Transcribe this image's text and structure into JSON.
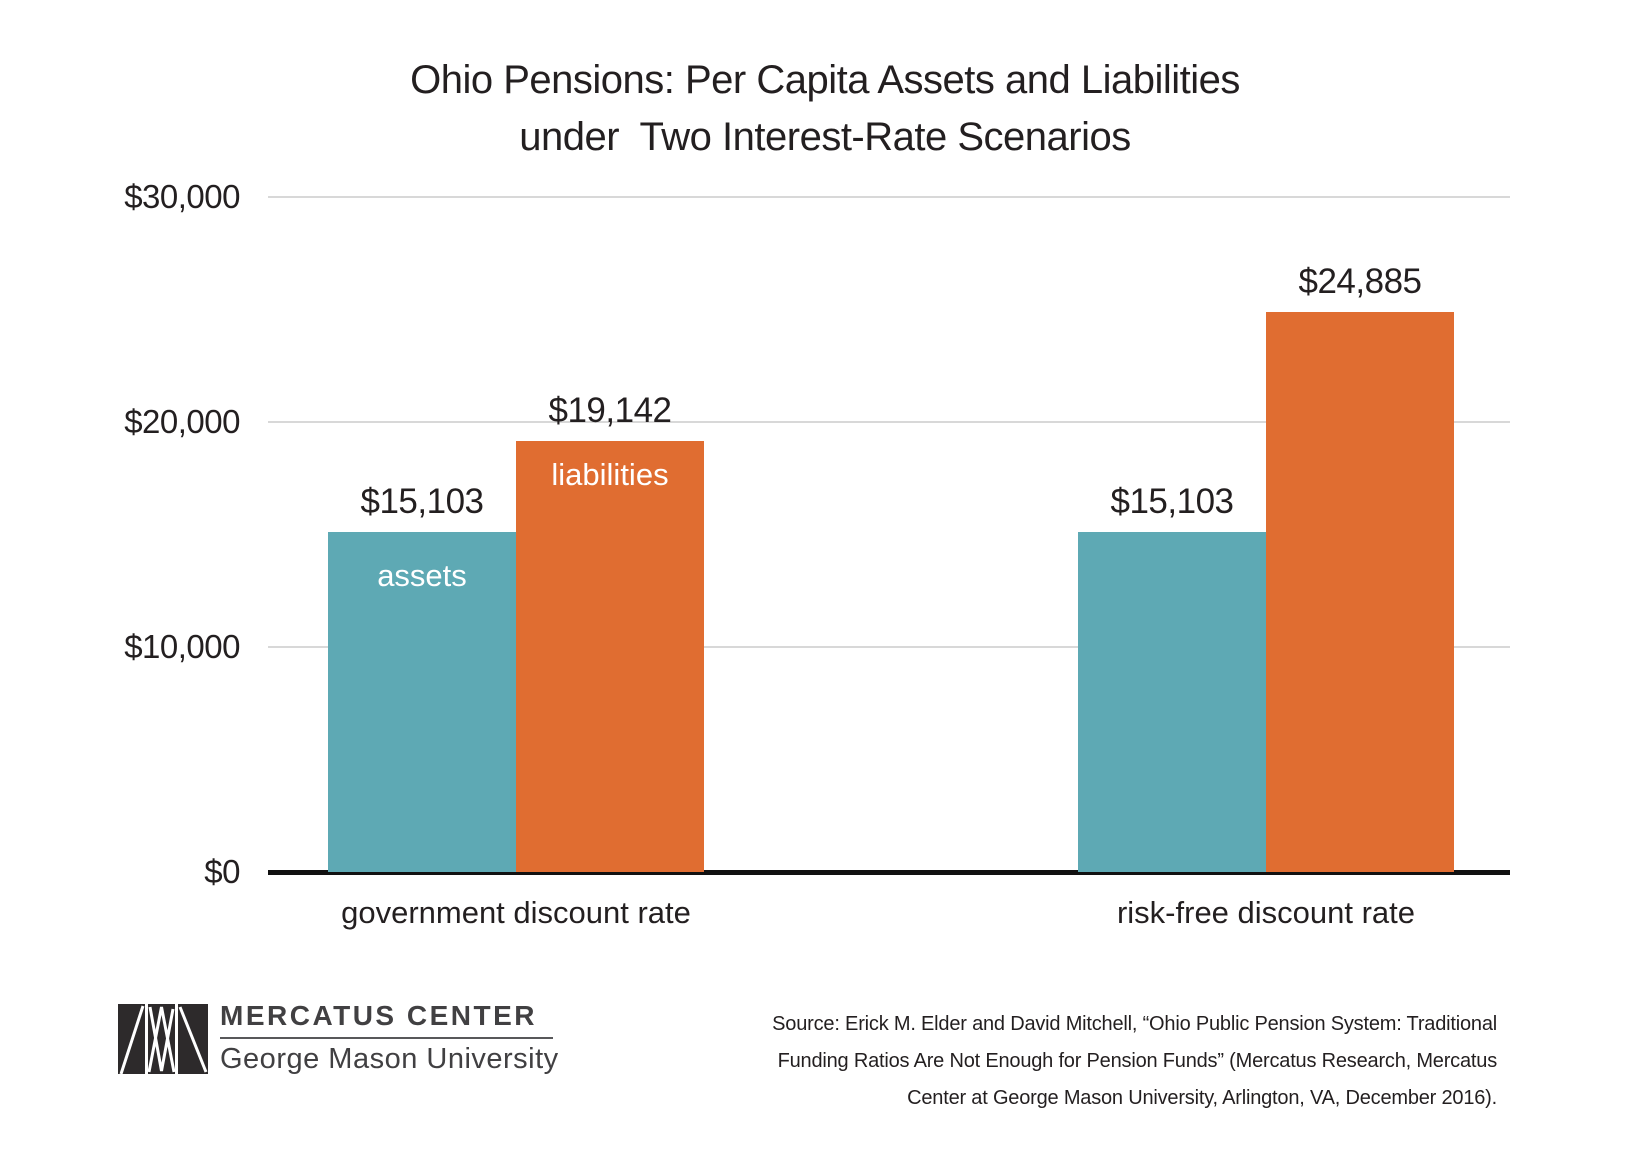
{
  "title": {
    "line1": "Ohio Pensions: Per Capita Assets and Liabilities",
    "line2": "under  Two Interest-Rate Scenarios"
  },
  "chart_data": {
    "type": "bar",
    "title": "Ohio Pensions: Per Capita Assets and Liabilities under Two Interest-Rate Scenarios",
    "categories": [
      "government discount rate",
      "risk-free discount rate"
    ],
    "series": [
      {
        "name": "assets",
        "values": [
          15103,
          15103
        ],
        "color": "#5ea9b4"
      },
      {
        "name": "liabilities",
        "values": [
          19142,
          24885
        ],
        "color": "#e06d31"
      }
    ],
    "value_labels": [
      [
        "$15,103",
        "$15,103"
      ],
      [
        "$19,142",
        "$24,885"
      ]
    ],
    "inner_labels_group_index": 0,
    "ylim": [
      0,
      30000
    ],
    "yticks": [
      {
        "value": 0,
        "label": "$0"
      },
      {
        "value": 10000,
        "label": "$10,000"
      },
      {
        "value": 20000,
        "label": "$20,000"
      },
      {
        "value": 30000,
        "label": "$30,000"
      }
    ],
    "grid": true,
    "legend_position": "inside-first-group-bars"
  },
  "footer": {
    "logo": {
      "icon": "mercatus-triangles-mark",
      "name": "MERCATUS CENTER",
      "subname": "George Mason University"
    },
    "source_lines": [
      "Source: Erick M. Elder and David Mitchell, “Ohio Public Pension System: Traditional",
      "Funding Ratios Are Not Enough for Pension Funds” (Mercatus Research, Mercatus",
      "Center at George Mason University, Arlington, VA, December 2016)."
    ]
  },
  "colors": {
    "assets": "#5ea9b4",
    "liabilities": "#e06d31",
    "text": "#231f20",
    "inner_label_text": "#ffffff",
    "gridline": "#d8d8d8",
    "axis": "#111111",
    "logo": "#414042",
    "logo_mark": "#2d2a2b",
    "background": "#ffffff"
  }
}
